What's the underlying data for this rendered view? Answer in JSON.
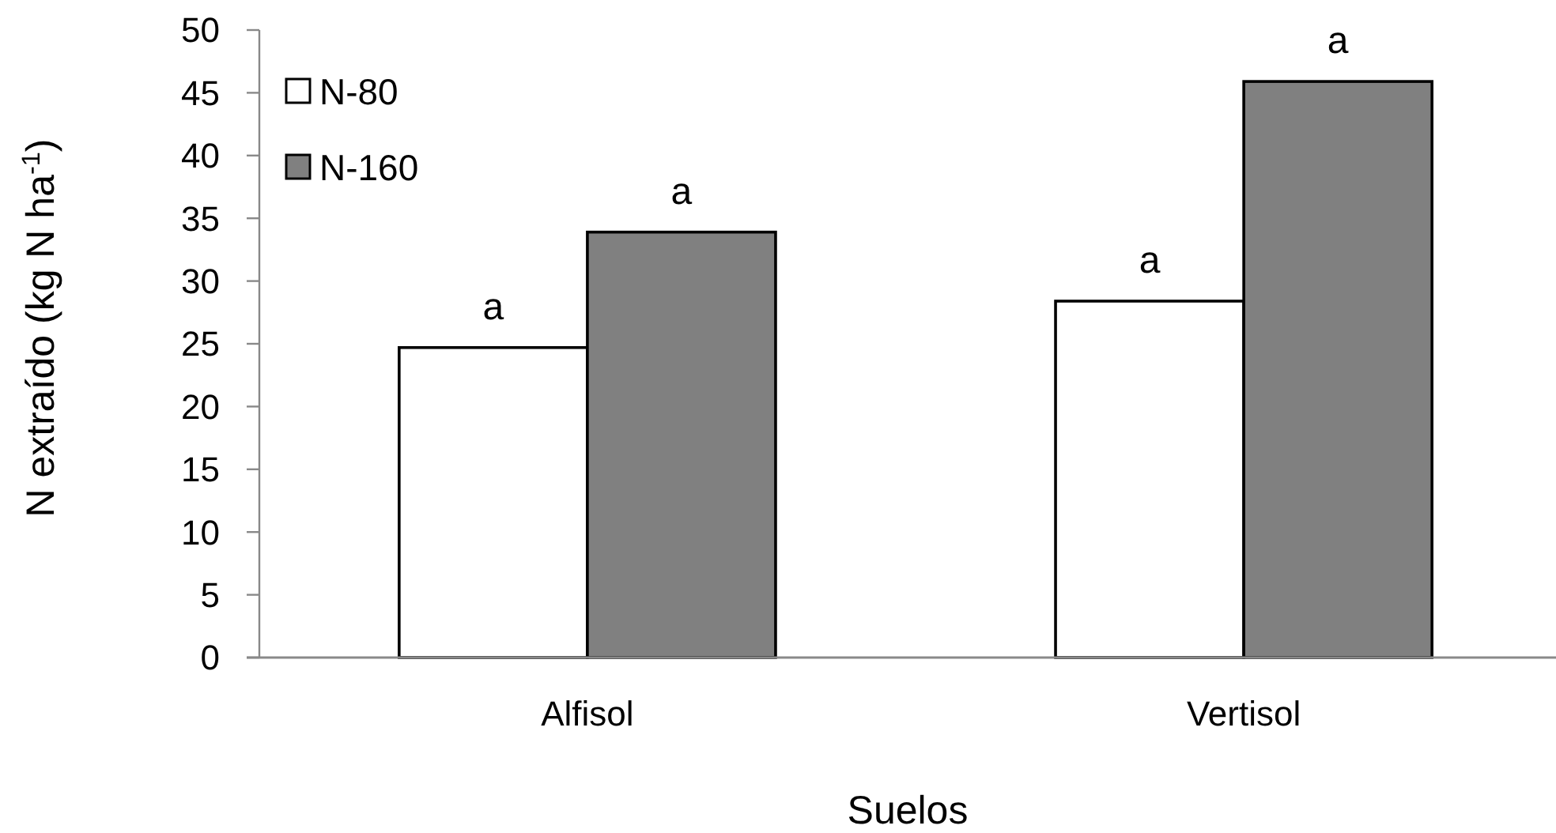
{
  "chart_data": {
    "type": "bar",
    "xlabel": "Suelos",
    "ylabel": "N extraído (kg N ha$^{-1}$)",
    "categories": [
      "Alfisol",
      "Vertisol"
    ],
    "series": [
      {
        "name": "N-80",
        "color": "#ffffff",
        "values": [
          24.7,
          28.4
        ],
        "value_labels": [
          "a",
          "a"
        ]
      },
      {
        "name": "N-160",
        "color": "#808080",
        "values": [
          33.9,
          45.9
        ],
        "value_labels": [
          "a",
          "a"
        ]
      }
    ],
    "ylim": [
      0,
      50
    ],
    "yticks": [
      0,
      5,
      10,
      15,
      20,
      25,
      30,
      35,
      40,
      45,
      50
    ],
    "legend": "top left"
  }
}
